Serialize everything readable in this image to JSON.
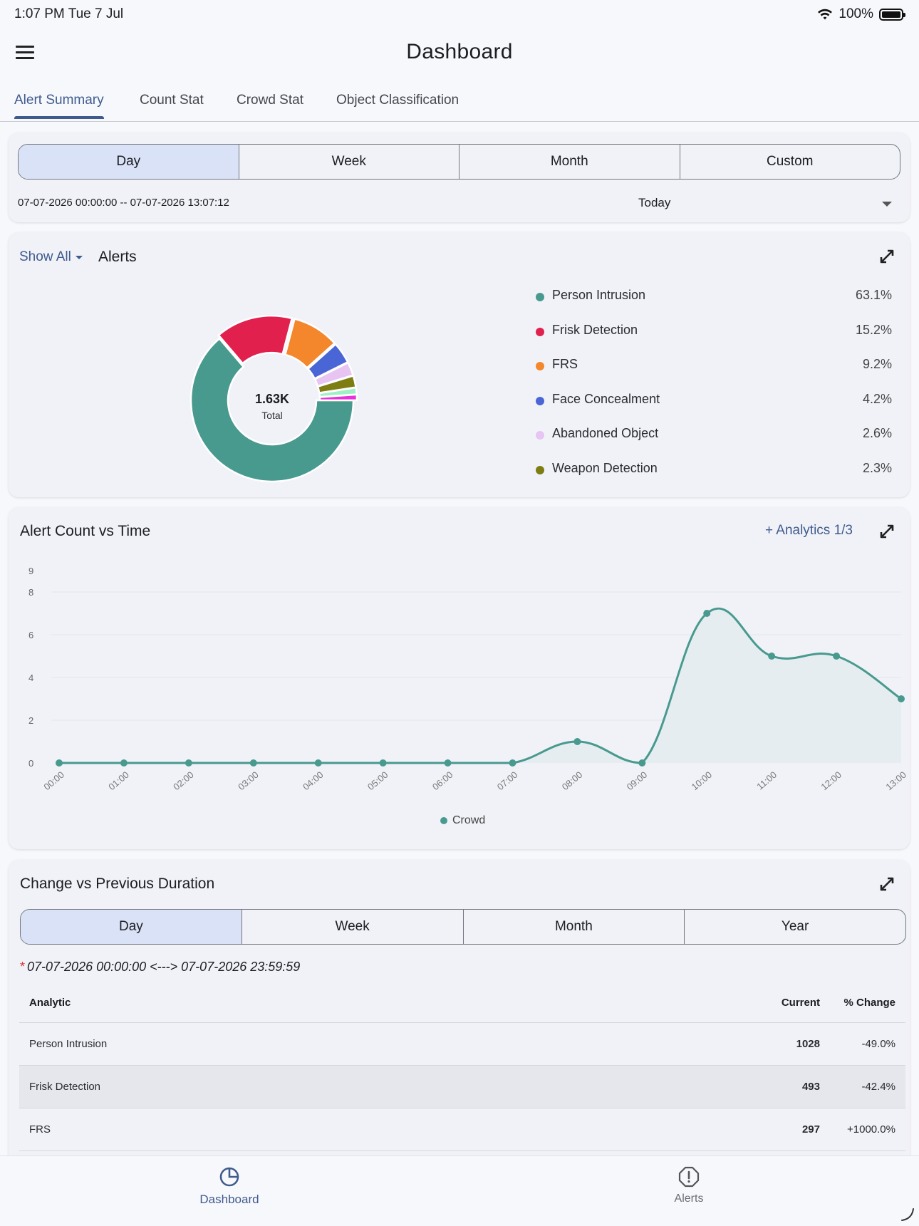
{
  "status": {
    "time": "1:07 PM   Tue 7 Jul",
    "battery": "100%"
  },
  "app": {
    "title": "Dashboard"
  },
  "tabs": [
    "Alert Summary",
    "Count Stat",
    "Crowd Stat",
    "Object Classification"
  ],
  "period_filter": {
    "options": [
      "Day",
      "Week",
      "Month",
      "Custom"
    ],
    "selected": "Day",
    "range": "07-07-2026 00:00:00 -- 07-07-2026 13:07:12",
    "preset": "Today"
  },
  "alerts_card": {
    "filter_label": "Show All",
    "title": "Alerts",
    "center_value": "1.63K",
    "center_label": "Total",
    "legend": [
      {
        "name": "Person Intrusion",
        "pct": "63.1%",
        "color": "#489a8f"
      },
      {
        "name": "Frisk Detection",
        "pct": "15.2%",
        "color": "#e2204e"
      },
      {
        "name": "FRS",
        "pct": "9.2%",
        "color": "#f4862c"
      },
      {
        "name": "Face Concealment",
        "pct": "4.2%",
        "color": "#4a66d6"
      },
      {
        "name": "Abandoned Object",
        "pct": "2.6%",
        "color": "#e7c4f2"
      },
      {
        "name": "Weapon Detection",
        "pct": "2.3%",
        "color": "#7e7d12"
      }
    ]
  },
  "chart_data": [
    {
      "type": "pie",
      "title": "Alerts",
      "categories": [
        "Person Intrusion",
        "Frisk Detection",
        "FRS",
        "Face Concealment",
        "Abandoned Object",
        "Weapon Detection",
        "Other (light green)",
        "Other (magenta)"
      ],
      "values": [
        63.1,
        15.2,
        9.2,
        4.2,
        2.6,
        2.3,
        1.3,
        1.1
      ],
      "colors": [
        "#489a8f",
        "#e2204e",
        "#f4862c",
        "#4a66d6",
        "#e7c4f2",
        "#7e7d12",
        "#9ef0c6",
        "#e632d8"
      ],
      "donut": true
    },
    {
      "type": "area",
      "title": "Alert Count vs Time",
      "x": [
        "00:00",
        "01:00",
        "02:00",
        "03:00",
        "04:00",
        "05:00",
        "06:00",
        "07:00",
        "08:00",
        "09:00",
        "10:00",
        "11:00",
        "12:00",
        "13:00"
      ],
      "series": [
        {
          "name": "Crowd",
          "values": [
            0,
            0,
            0,
            0,
            0,
            0,
            0,
            0,
            1,
            0,
            7,
            5,
            5,
            3
          ],
          "color": "#489a8f"
        }
      ],
      "yticks": [
        0,
        2,
        4,
        6,
        8,
        9
      ],
      "ylim": [
        0,
        9
      ],
      "grid": true,
      "legend": "bottom"
    }
  ],
  "timeline_card": {
    "title": "Alert Count vs Time",
    "analytics_link": "+ Analytics 1/3"
  },
  "change_card": {
    "title": "Change vs Previous Duration",
    "options": [
      "Day",
      "Week",
      "Month",
      "Year"
    ],
    "selected": "Day",
    "range_note": "07-07-2026 00:00:00 <---> 07-07-2026 23:59:59",
    "columns": [
      "Analytic",
      "Current",
      "% Change"
    ],
    "rows": [
      {
        "analytic": "Person Intrusion",
        "current": "1028",
        "change": "-49.0%"
      },
      {
        "analytic": "Frisk Detection",
        "current": "493",
        "change": "-42.4%"
      },
      {
        "analytic": "FRS",
        "current": "297",
        "change": "+1000.0%"
      }
    ]
  },
  "bottom_nav": [
    {
      "label": "Dashboard"
    },
    {
      "label": "Alerts"
    }
  ]
}
